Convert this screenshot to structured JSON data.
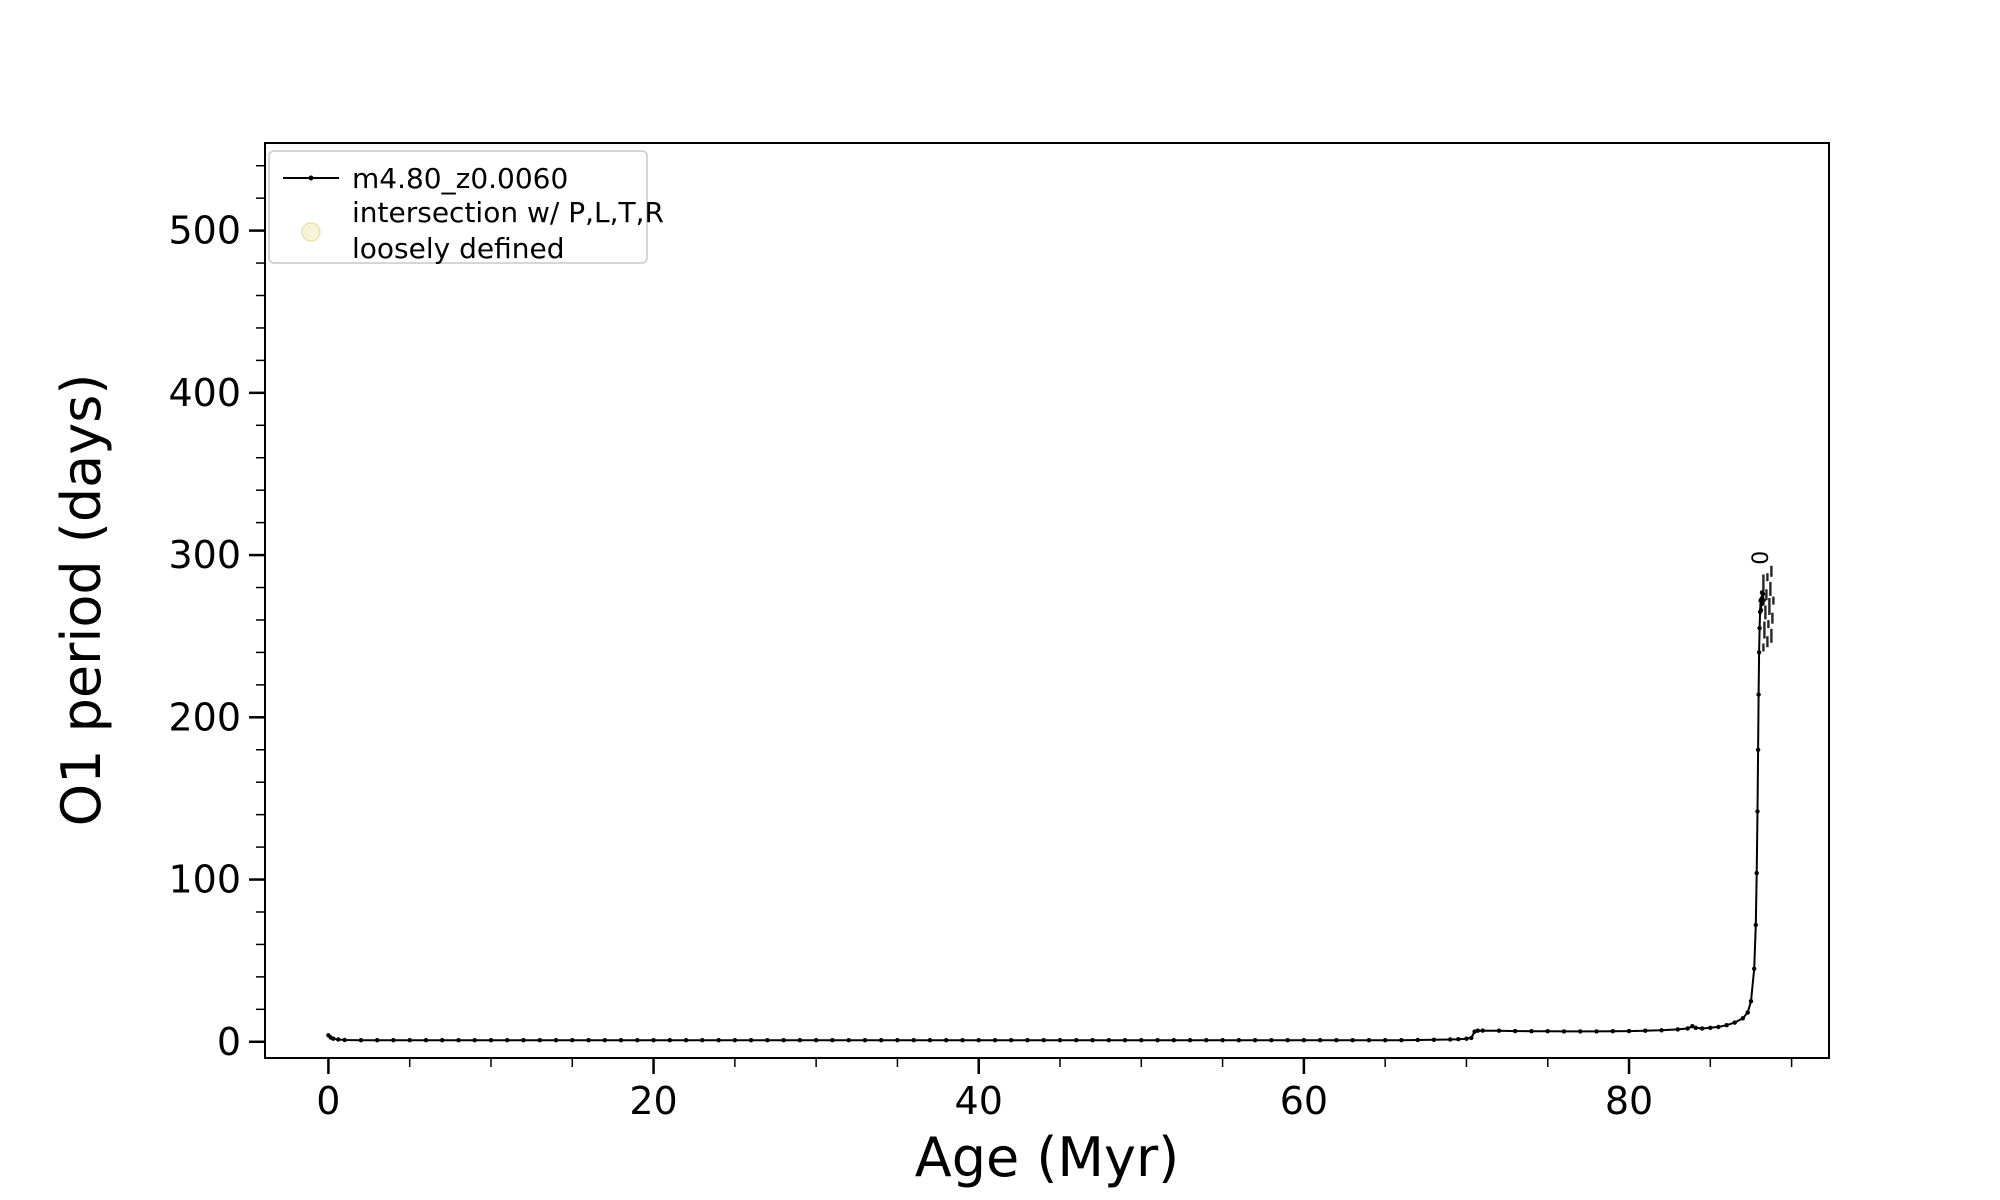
{
  "figure": {
    "background": "#ffffff"
  },
  "chart_data": {
    "type": "line",
    "title": "",
    "xlabel": "Age (Myr)",
    "ylabel": "O1 period (days)",
    "xlim": [
      -3.9,
      92.3
    ],
    "ylim": [
      -10,
      554
    ],
    "xticks": [
      0,
      20,
      40,
      60,
      80
    ],
    "yticks": [
      0,
      100,
      200,
      300,
      400,
      500
    ],
    "x_minor_step": 5,
    "y_minor_step": 20,
    "grid": false,
    "axis_color": "#000000",
    "legend": {
      "position": "upper-left",
      "entries": [
        {
          "label": "m4.80_z0.0060",
          "type": "line-marker",
          "color": "#000000"
        },
        {
          "label_line1": "intersection w/ P,L,T,R",
          "label_line2": "loosely defined",
          "type": "marker",
          "color": "#eee8aa"
        }
      ]
    },
    "series": [
      {
        "name": "m4.80_z0.0060",
        "color": "#000000",
        "marker": "dot",
        "points": [
          [
            0,
            4
          ],
          [
            0.15,
            2.6
          ],
          [
            0.3,
            1.9
          ],
          [
            0.6,
            1.4
          ],
          [
            1,
            1.1
          ],
          [
            2,
            1
          ],
          [
            3,
            1
          ],
          [
            4,
            1
          ],
          [
            5,
            1
          ],
          [
            6,
            1
          ],
          [
            7,
            1
          ],
          [
            8,
            1
          ],
          [
            9,
            1
          ],
          [
            10,
            1
          ],
          [
            11,
            1
          ],
          [
            12,
            1
          ],
          [
            13,
            1
          ],
          [
            14,
            1
          ],
          [
            15,
            1
          ],
          [
            16,
            1
          ],
          [
            17,
            1
          ],
          [
            18,
            1
          ],
          [
            19,
            1
          ],
          [
            20,
            1
          ],
          [
            21,
            1
          ],
          [
            22,
            1
          ],
          [
            23,
            1
          ],
          [
            24,
            1
          ],
          [
            25,
            1
          ],
          [
            26,
            1
          ],
          [
            27,
            1
          ],
          [
            28,
            1
          ],
          [
            29,
            1
          ],
          [
            30,
            1
          ],
          [
            31,
            1
          ],
          [
            32,
            1
          ],
          [
            33,
            1
          ],
          [
            34,
            1
          ],
          [
            35,
            1
          ],
          [
            36,
            1
          ],
          [
            37,
            1
          ],
          [
            38,
            1
          ],
          [
            39,
            1
          ],
          [
            40,
            1
          ],
          [
            41,
            1
          ],
          [
            42,
            1
          ],
          [
            43,
            1
          ],
          [
            44,
            1
          ],
          [
            45,
            1
          ],
          [
            46,
            1
          ],
          [
            47,
            1
          ],
          [
            48,
            1
          ],
          [
            49,
            1
          ],
          [
            50,
            1
          ],
          [
            51,
            1
          ],
          [
            52,
            1
          ],
          [
            53,
            1
          ],
          [
            54,
            1
          ],
          [
            55,
            1
          ],
          [
            56,
            1
          ],
          [
            57,
            1
          ],
          [
            58,
            1
          ],
          [
            59,
            1
          ],
          [
            60,
            1
          ],
          [
            61,
            1
          ],
          [
            62,
            1
          ],
          [
            63,
            1
          ],
          [
            64,
            1
          ],
          [
            65,
            1
          ],
          [
            66,
            1
          ],
          [
            67,
            1.1
          ],
          [
            68,
            1.2
          ],
          [
            69,
            1.4
          ],
          [
            69.5,
            1.6
          ],
          [
            70,
            1.9
          ],
          [
            70.3,
            2.4
          ],
          [
            70.5,
            6.3
          ],
          [
            70.7,
            6.8
          ],
          [
            71,
            6.9
          ],
          [
            72,
            6.8
          ],
          [
            73,
            6.6
          ],
          [
            74,
            6.5
          ],
          [
            75,
            6.5
          ],
          [
            76,
            6.4
          ],
          [
            77,
            6.4
          ],
          [
            78,
            6.4
          ],
          [
            79,
            6.5
          ],
          [
            80,
            6.6
          ],
          [
            81,
            6.8
          ],
          [
            82,
            7.1
          ],
          [
            83,
            7.6
          ],
          [
            83.6,
            8.2
          ],
          [
            83.9,
            9.6
          ],
          [
            84.1,
            8.6
          ],
          [
            84.5,
            8.2
          ],
          [
            85,
            8.6
          ],
          [
            85.5,
            9.2
          ],
          [
            86,
            10.2
          ],
          [
            86.5,
            11.8
          ],
          [
            87,
            14.5
          ],
          [
            87.3,
            18
          ],
          [
            87.5,
            25
          ],
          [
            87.7,
            45
          ],
          [
            87.8,
            72
          ],
          [
            87.85,
            104
          ],
          [
            87.9,
            142
          ],
          [
            87.94,
            180
          ],
          [
            87.97,
            214
          ],
          [
            88,
            240
          ],
          [
            88.03,
            255
          ],
          [
            88.06,
            265
          ],
          [
            88.09,
            272
          ],
          [
            88.12,
            266
          ],
          [
            88.15,
            273
          ],
          [
            88.18,
            277
          ],
          [
            88.21,
            270
          ],
          [
            88.24,
            276
          ],
          [
            88.27,
            272
          ]
        ]
      }
    ],
    "annotations": [
      {
        "x": 88.55,
        "y": 294,
        "text": "0",
        "rotation": 90
      }
    ],
    "illegible_label_cluster": {
      "x": 88.5,
      "y_min": 243,
      "y_max": 290,
      "count": 14
    }
  }
}
